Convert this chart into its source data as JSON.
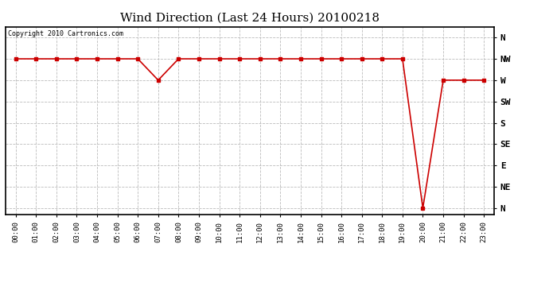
{
  "title": "Wind Direction (Last 24 Hours) 20100218",
  "copyright_text": "Copyright 2010 Cartronics.com",
  "background_color": "#ffffff",
  "plot_bg_color": "#ffffff",
  "line_color": "#cc0000",
  "marker": "s",
  "marker_size": 3,
  "grid_color": "#bbbbbb",
  "ytick_labels": [
    "N",
    "NW",
    "W",
    "SW",
    "S",
    "SE",
    "E",
    "NE",
    "N"
  ],
  "ytick_values": [
    8,
    7,
    6,
    5,
    4,
    3,
    2,
    1,
    0
  ],
  "hours": [
    0,
    1,
    2,
    3,
    4,
    5,
    6,
    7,
    8,
    9,
    10,
    11,
    12,
    13,
    14,
    15,
    16,
    17,
    18,
    19,
    20,
    21,
    22,
    23
  ],
  "wind_values": [
    7,
    7,
    7,
    7,
    7,
    7,
    7,
    6,
    7,
    7,
    7,
    7,
    7,
    7,
    7,
    7,
    7,
    7,
    7,
    7,
    0,
    6,
    6,
    6
  ],
  "xlim": [
    -0.5,
    23.5
  ],
  "ylim": [
    -0.3,
    8.5
  ]
}
